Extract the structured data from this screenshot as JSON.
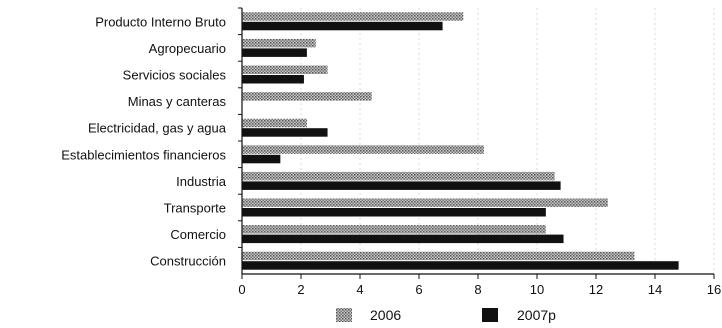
{
  "chart_data": {
    "type": "bar",
    "orientation": "horizontal",
    "categories": [
      "Producto Interno Bruto",
      "Agropecuario",
      "Servicios sociales",
      "Minas y canteras",
      "Electricidad, gas y agua",
      "Establecimientos financieros",
      "Industria",
      "Transporte",
      "Comercio",
      "Construcción"
    ],
    "series": [
      {
        "name": "2006",
        "values": [
          7.5,
          2.5,
          2.9,
          4.4,
          2.2,
          8.2,
          10.6,
          12.4,
          10.3,
          13.3
        ],
        "color": "#8a8a8a",
        "pattern": "dotted"
      },
      {
        "name": "2007p",
        "values": [
          6.8,
          2.2,
          2.1,
          0,
          2.9,
          1.3,
          10.8,
          10.3,
          10.9,
          14.8
        ],
        "color": "#111111",
        "pattern": "solid"
      }
    ],
    "xticks": [
      "0",
      "2",
      "4",
      "6",
      "8",
      "10",
      "12",
      "14",
      "16"
    ],
    "xlim": [
      0,
      16
    ],
    "legend": "bottom",
    "grid": true,
    "title": "",
    "xlabel": "",
    "ylabel": ""
  }
}
